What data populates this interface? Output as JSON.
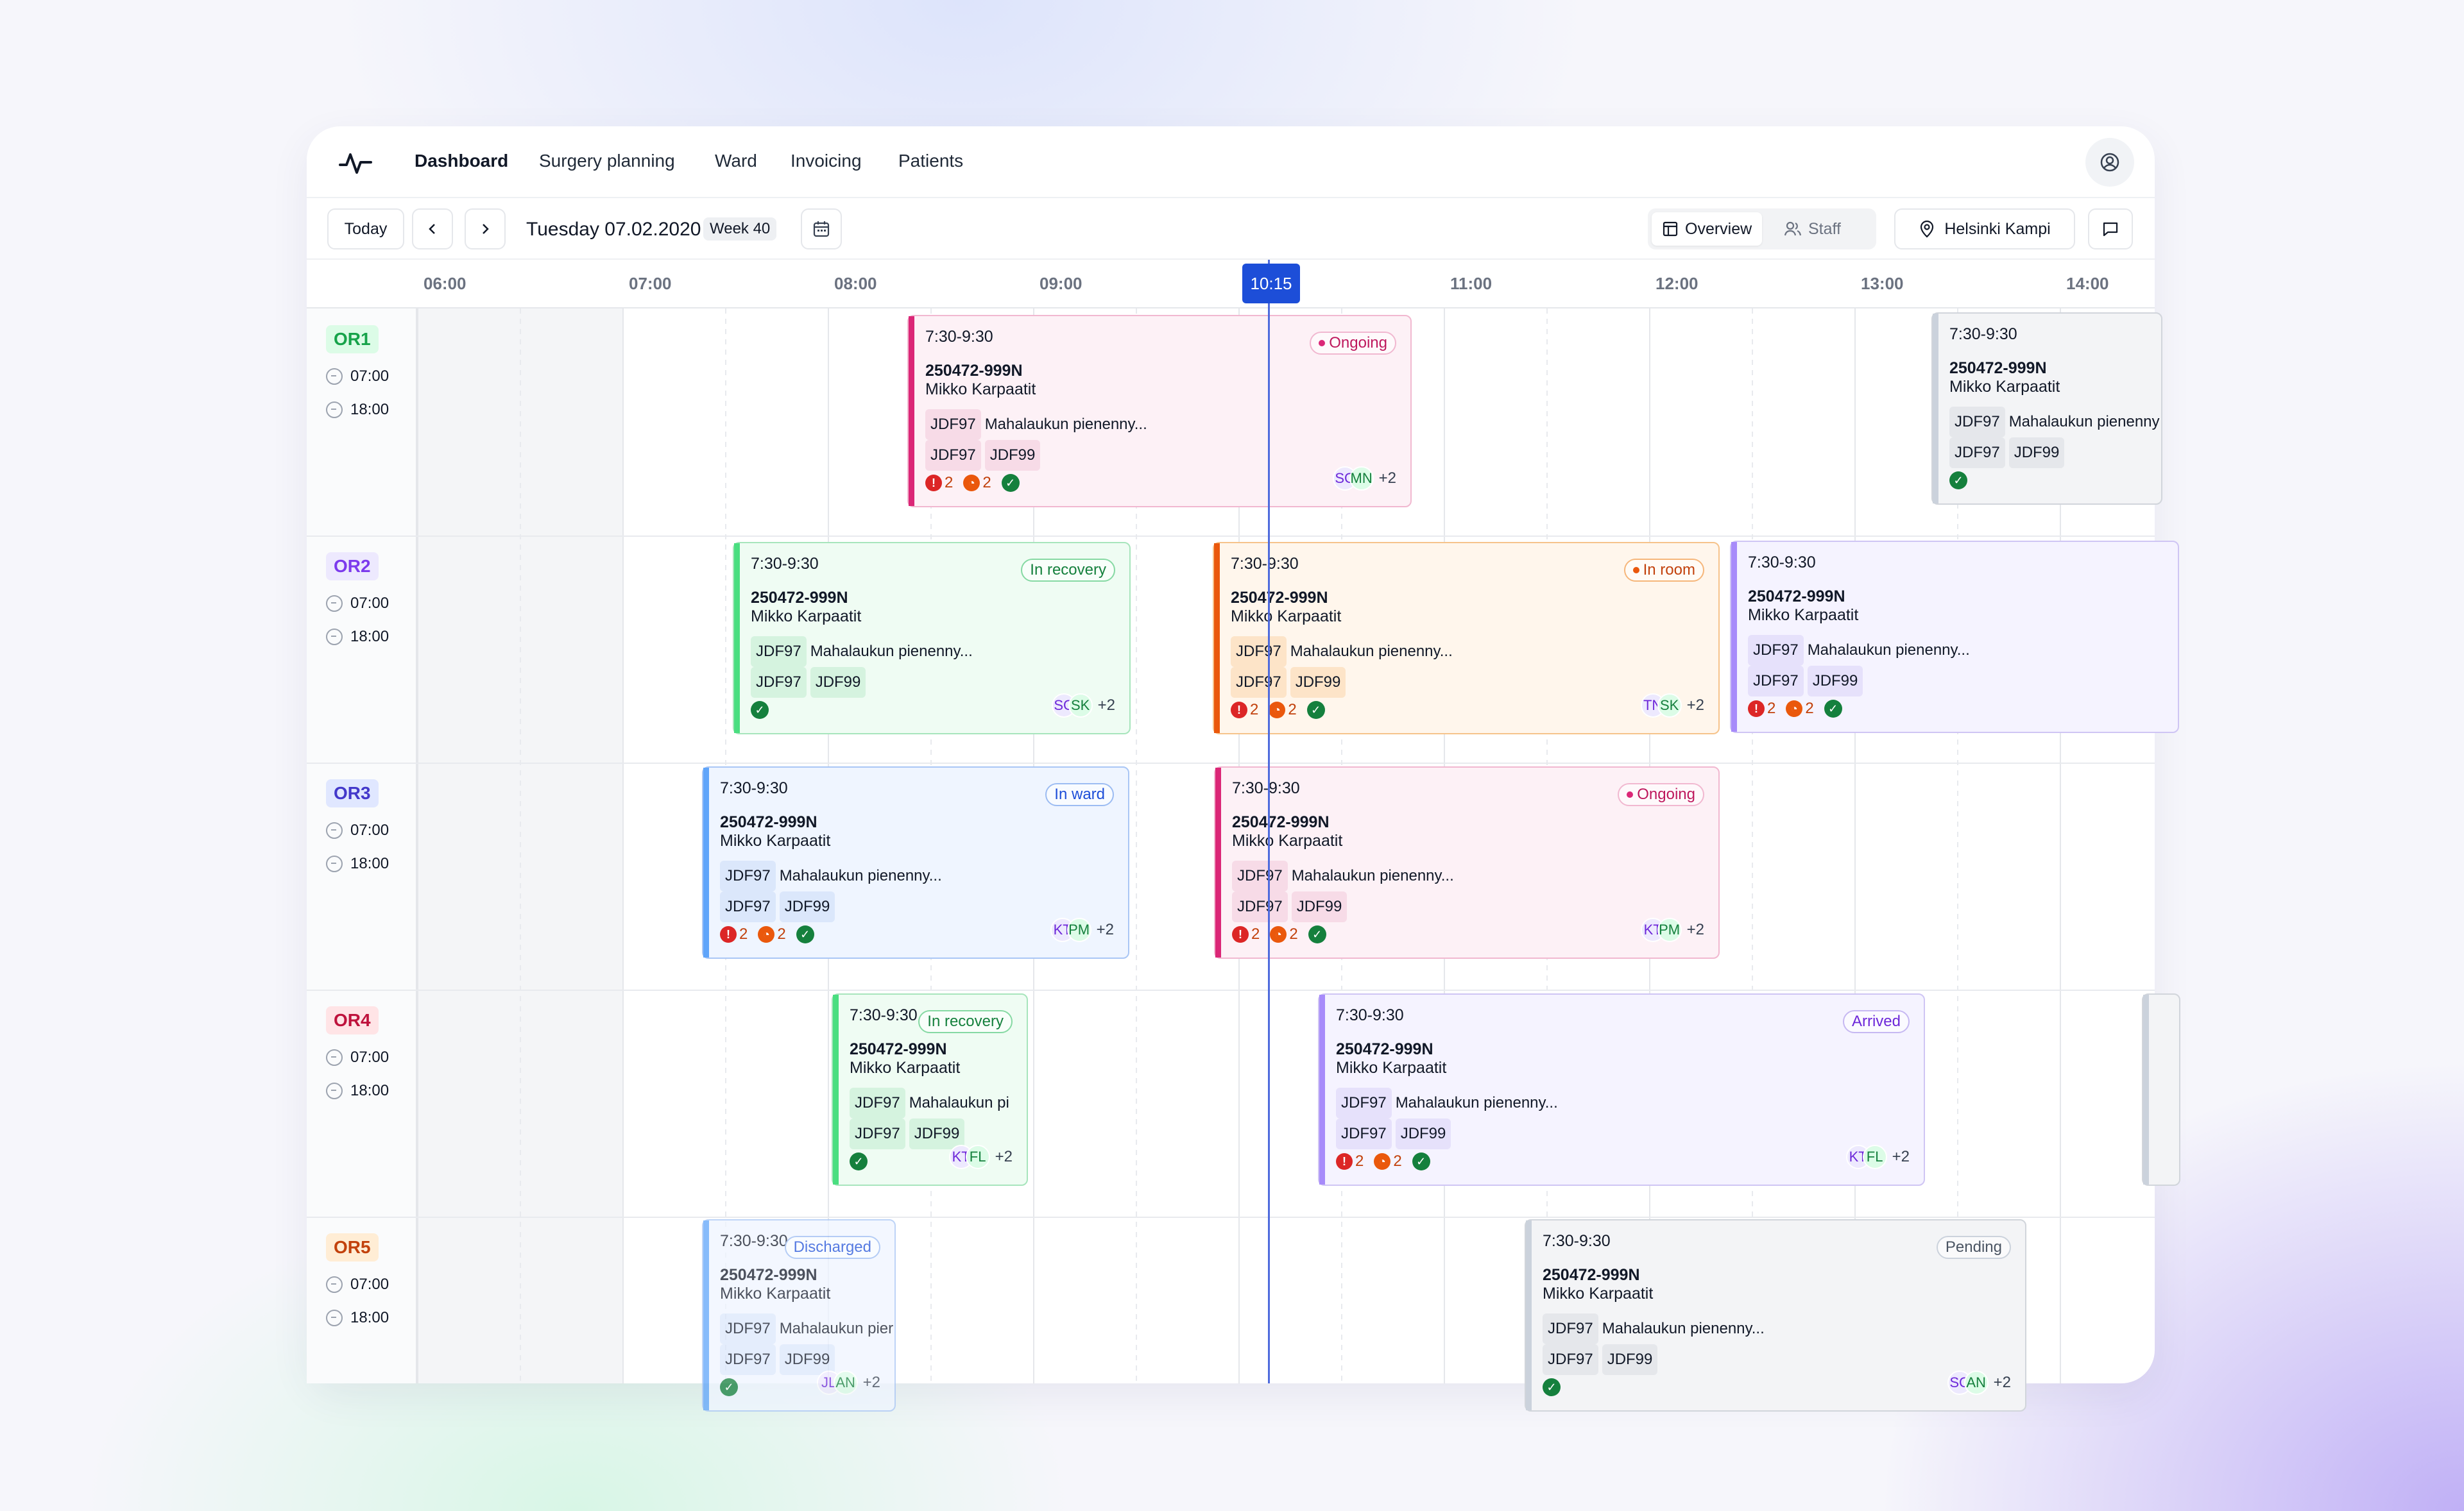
{
  "nav": {
    "links": [
      "Dashboard",
      "Surgery planning",
      "Ward",
      "Invoicing",
      "Patients"
    ]
  },
  "toolbar": {
    "today_label": "Today",
    "date": "Tuesday 07.02.2020",
    "week": "Week 40",
    "view_overview": "Overview",
    "view_staff": "Staff",
    "location": "Helsinki Kampi"
  },
  "hours": [
    "06:00",
    "07:00",
    "08:00",
    "09:00",
    "10:15",
    "11:00",
    "12:00",
    "13:00",
    "14:00"
  ],
  "now_label": "10:15",
  "rooms": [
    {
      "name": "OR1",
      "start": "07:00",
      "end": "18:00",
      "color": "#16a34a",
      "bg": "#dcfce7"
    },
    {
      "name": "OR2",
      "start": "07:00",
      "end": "18:00",
      "color": "#7c3aed",
      "bg": "#ede9fe"
    },
    {
      "name": "OR3",
      "start": "07:00",
      "end": "18:00",
      "color": "#4338ca",
      "bg": "#e0e7ff"
    },
    {
      "name": "OR4",
      "start": "07:00",
      "end": "18:00",
      "color": "#be123c",
      "bg": "#ffe4e6"
    },
    {
      "name": "OR5",
      "start": "07:00",
      "end": "18:00",
      "color": "#c2410c",
      "bg": "#ffedd5"
    }
  ],
  "cards": [
    {
      "time": "7:30-9:30",
      "id": "250472-999N",
      "name": "Mikko Karpaatit",
      "code1": "JDF97",
      "desc": "Mahalaukun pienenny...",
      "code2": "JDF97",
      "code3": "JDF99",
      "status": "Ongoing",
      "warn": "2",
      "clock": "2",
      "s1": "SC",
      "s2": "MN",
      "more": "+2"
    },
    {
      "time": "7:30-9:30",
      "id": "250472-999N",
      "name": "Mikko Karpaatit",
      "code1": "JDF97",
      "desc": "Mahalaukun pienenny",
      "code2": "JDF97",
      "code3": "JDF99",
      "status": "",
      "warn": "",
      "clock": "",
      "s1": "",
      "s2": "",
      "more": ""
    },
    {
      "time": "7:30-9:30",
      "id": "250472-999N",
      "name": "Mikko Karpaatit",
      "code1": "JDF97",
      "desc": "Mahalaukun pienenny...",
      "code2": "JDF97",
      "code3": "JDF99",
      "status": "In recovery",
      "warn": "",
      "clock": "",
      "s1": "SC",
      "s2": "SK",
      "more": "+2"
    },
    {
      "time": "7:30-9:30",
      "id": "250472-999N",
      "name": "Mikko Karpaatit",
      "code1": "JDF97",
      "desc": "Mahalaukun pienenny...",
      "code2": "JDF97",
      "code3": "JDF99",
      "status": "In room",
      "warn": "2",
      "clock": "2",
      "s1": "TN",
      "s2": "SK",
      "more": "+2"
    },
    {
      "time": "7:30-9:30",
      "id": "250472-999N",
      "name": "Mikko Karpaatit",
      "code1": "JDF97",
      "desc": "Mahalaukun pienenny...",
      "code2": "JDF97",
      "code3": "JDF99",
      "status": "",
      "warn": "2",
      "clock": "2",
      "s1": "",
      "s2": "",
      "more": ""
    },
    {
      "time": "7:30-9:30",
      "id": "250472-999N",
      "name": "Mikko Karpaatit",
      "code1": "JDF97",
      "desc": "Mahalaukun pienenny...",
      "code2": "JDF97",
      "code3": "JDF99",
      "status": "In ward",
      "warn": "2",
      "clock": "2",
      "s1": "KT",
      "s2": "PM",
      "more": "+2"
    },
    {
      "time": "7:30-9:30",
      "id": "250472-999N",
      "name": "Mikko Karpaatit",
      "code1": "JDF97",
      "desc": "Mahalaukun pienenny...",
      "code2": "JDF97",
      "code3": "JDF99",
      "status": "Ongoing",
      "warn": "2",
      "clock": "2",
      "s1": "KT",
      "s2": "PM",
      "more": "+2"
    },
    {
      "time": "7:30-9:30",
      "id": "250472-999N",
      "name": "Mikko Karpaatit",
      "code1": "JDF97",
      "desc": "Mahalaukun pi",
      "code2": "JDF97",
      "code3": "JDF99",
      "status": "In recovery",
      "warn": "",
      "clock": "",
      "s1": "KT",
      "s2": "FL",
      "more": "+2"
    },
    {
      "time": "7:30-9:30",
      "id": "250472-999N",
      "name": "Mikko Karpaatit",
      "code1": "JDF97",
      "desc": "Mahalaukun pienenny...",
      "code2": "JDF97",
      "code3": "JDF99",
      "status": "Arrived",
      "warn": "2",
      "clock": "2",
      "s1": "KT",
      "s2": "FL",
      "more": "+2"
    },
    {
      "time": "7:30-9:30",
      "id": "250472-999N",
      "name": "Mikko Karpaatit",
      "code1": "JDF97",
      "desc": "Mahalaukun pier",
      "code2": "JDF97",
      "code3": "JDF99",
      "status": "Discharged",
      "warn": "",
      "clock": "",
      "s1": "JL",
      "s2": "AN",
      "more": "+2"
    },
    {
      "time": "7:30-9:30",
      "id": "250472-999N",
      "name": "Mikko Karpaatit",
      "code1": "JDF97",
      "desc": "Mahalaukun pienenny...",
      "code2": "JDF97",
      "code3": "JDF99",
      "status": "Pending",
      "warn": "",
      "clock": "",
      "s1": "SC",
      "s2": "AN",
      "more": "+2"
    }
  ]
}
